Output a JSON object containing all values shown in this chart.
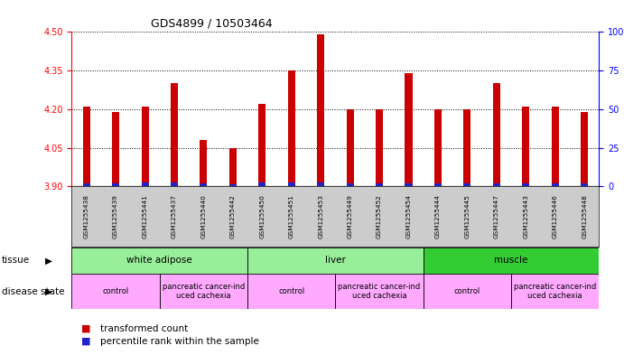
{
  "title": "GDS4899 / 10503464",
  "samples": [
    "GSM1255438",
    "GSM1255439",
    "GSM1255441",
    "GSM1255437",
    "GSM1255440",
    "GSM1255442",
    "GSM1255450",
    "GSM1255451",
    "GSM1255453",
    "GSM1255449",
    "GSM1255452",
    "GSM1255454",
    "GSM1255444",
    "GSM1255445",
    "GSM1255447",
    "GSM1255443",
    "GSM1255446",
    "GSM1255448"
  ],
  "transformed_count": [
    4.21,
    4.19,
    4.21,
    4.3,
    4.08,
    4.05,
    4.22,
    4.35,
    4.49,
    4.2,
    4.2,
    4.34,
    4.2,
    4.2,
    4.3,
    4.21,
    4.21,
    4.19
  ],
  "percentile_rank_value": [
    0.012,
    0.012,
    0.015,
    0.015,
    0.01,
    0.008,
    0.015,
    0.015,
    0.015,
    0.012,
    0.012,
    0.012,
    0.012,
    0.012,
    0.012,
    0.012,
    0.012,
    0.012
  ],
  "ylim_left": [
    3.9,
    4.5
  ],
  "ylim_right": [
    0,
    100
  ],
  "yticks_left": [
    3.9,
    4.05,
    4.2,
    4.35,
    4.5
  ],
  "yticks_right": [
    0,
    25,
    50,
    75,
    100
  ],
  "bar_color_red": "#cc0000",
  "bar_color_blue": "#2222cc",
  "tissue_groups": [
    {
      "label": "white adipose",
      "start": 0,
      "end": 6,
      "color": "#99ee99"
    },
    {
      "label": "liver",
      "start": 6,
      "end": 12,
      "color": "#99ee99"
    },
    {
      "label": "muscle",
      "start": 12,
      "end": 18,
      "color": "#33cc33"
    }
  ],
  "disease_groups": [
    {
      "label": "control",
      "start": 0,
      "end": 3,
      "color": "#ffaaff"
    },
    {
      "label": "pancreatic cancer-ind\nuced cachexia",
      "start": 3,
      "end": 6,
      "color": "#ffaaff"
    },
    {
      "label": "control",
      "start": 6,
      "end": 9,
      "color": "#ffaaff"
    },
    {
      "label": "pancreatic cancer-ind\nuced cachexia",
      "start": 9,
      "end": 12,
      "color": "#ffaaff"
    },
    {
      "label": "control",
      "start": 12,
      "end": 15,
      "color": "#ffaaff"
    },
    {
      "label": "pancreatic cancer-ind\nuced cachexia",
      "start": 15,
      "end": 18,
      "color": "#ffaaff"
    }
  ],
  "legend_items": [
    {
      "label": "transformed count",
      "color": "#cc0000"
    },
    {
      "label": "percentile rank within the sample",
      "color": "#2222cc"
    }
  ],
  "base": 3.9,
  "bar_width": 0.25
}
